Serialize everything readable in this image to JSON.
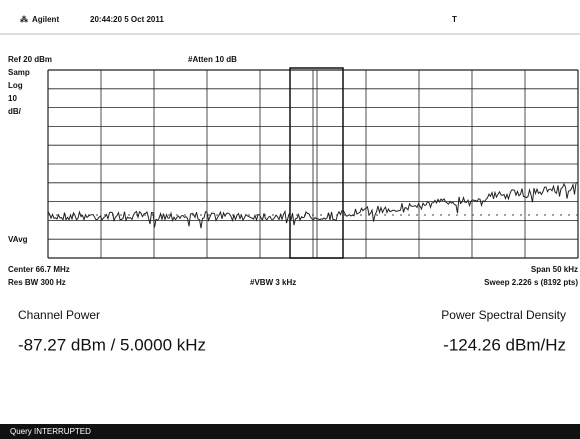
{
  "header": {
    "brand": "Agilent",
    "timestamp": "20:44:20 5 Oct 2011",
    "trigger": "T"
  },
  "display": {
    "ref": "Ref 20 dBm",
    "atten": "#Atten 10 dB",
    "mode": "Samp",
    "scale_type": "Log",
    "scale_value": "10",
    "scale_unit": "dB/",
    "average": "VAvg",
    "center": "Center 66.7 MHz",
    "span": "Span 50 kHz",
    "res_bw": "Res BW 300 Hz",
    "vbw": "#VBW 3 kHz",
    "sweep": "Sweep 2.226 s (8192 pts)"
  },
  "results": {
    "channel_power_label": "Channel Power",
    "channel_power_value": "-87.27 dBm / 5.0000 kHz",
    "psd_label": "Power Spectral Density",
    "psd_value": "-124.26 dBm/Hz"
  },
  "status": "Query INTERRUPTED"
}
